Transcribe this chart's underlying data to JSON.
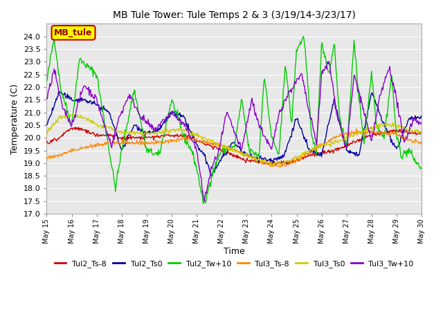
{
  "title": "MB Tule Tower: Tule Temps 2 & 3 (3/19/14-3/23/17)",
  "xlabel": "Time",
  "ylabel": "Temperature (C)",
  "ylim": [
    17.0,
    24.5
  ],
  "yticks": [
    17.0,
    17.5,
    18.0,
    18.5,
    19.0,
    19.5,
    20.0,
    20.5,
    21.0,
    21.5,
    22.0,
    22.5,
    23.0,
    23.5,
    24.0
  ],
  "xtick_labels": [
    "May 15",
    "May 16",
    "May 17",
    "May 18",
    "May 19",
    "May 20",
    "May 21",
    "May 22",
    "May 23",
    "May 24",
    "May 25",
    "May 26",
    "May 27",
    "May 28",
    "May 29",
    "May 30"
  ],
  "background_color": "#e8e8e8",
  "grid_color": "#ffffff",
  "legend_label": "MB_tule",
  "series_colors": {
    "Tul2_Ts-8": "#cc0000",
    "Tul2_Ts0": "#000099",
    "Tul2_Tw+10": "#00cc00",
    "Tul3_Ts-8": "#ff8800",
    "Tul3_Ts0": "#cccc00",
    "Tul3_Tw+10": "#8800cc"
  }
}
